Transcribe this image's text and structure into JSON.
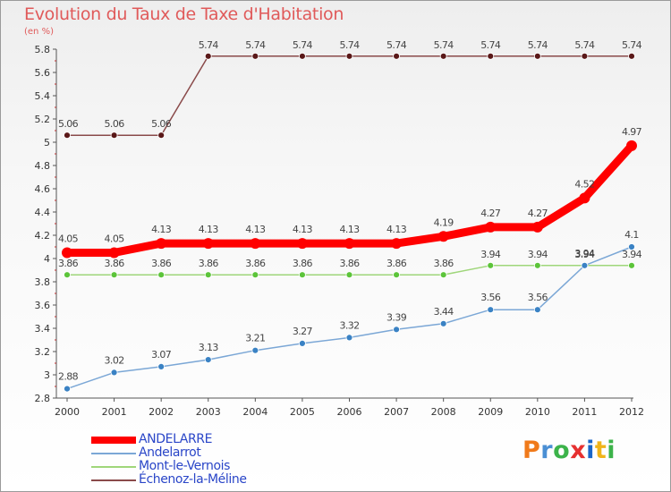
{
  "chart_data": {
    "type": "line",
    "title": "Evolution du Taux de Taxe d'Habitation",
    "subtitle": "(en %)",
    "x": [
      "2000",
      "2001",
      "2002",
      "2003",
      "2004",
      "2005",
      "2006",
      "2007",
      "2008",
      "2009",
      "2010",
      "2011",
      "2012"
    ],
    "y_ticks": [
      "2.8",
      "3",
      "3.2",
      "3.4",
      "3.6",
      "3.8",
      "4",
      "4.2",
      "4.4",
      "4.6",
      "4.8",
      "5",
      "5.2",
      "5.4",
      "5.6",
      "5.8"
    ],
    "ylim": [
      2.8,
      5.8
    ],
    "grid": false,
    "legend_position": "bottom-left",
    "series": [
      {
        "name": "ANDELARRE",
        "color": "#ff0000",
        "point_color": "#ff0000",
        "values": [
          4.05,
          4.05,
          4.13,
          4.13,
          4.13,
          4.13,
          4.13,
          4.13,
          4.19,
          4.27,
          4.27,
          4.52,
          4.97
        ],
        "labels": [
          "4.05",
          "4.05",
          "4.13",
          "4.13",
          "4.13",
          "4.13",
          "4.13",
          "4.13",
          "4.19",
          "4.27",
          "4.27",
          "4.52",
          "4.97"
        ]
      },
      {
        "name": "Andelarrot",
        "color": "#7ba7d6",
        "point_color": "#3a82c4",
        "values": [
          2.88,
          3.02,
          3.07,
          3.13,
          3.21,
          3.27,
          3.32,
          3.39,
          3.44,
          3.56,
          3.56,
          3.94,
          4.1
        ],
        "labels": [
          "2.88",
          "3.02",
          "3.07",
          "3.13",
          "3.21",
          "3.27",
          "3.32",
          "3.39",
          "3.44",
          "3.56",
          "3.56",
          "3.94",
          "4.1"
        ]
      },
      {
        "name": "Mont-le-Vernois",
        "color": "#9fd67a",
        "point_color": "#5cc43a",
        "values": [
          3.86,
          3.86,
          3.86,
          3.86,
          3.86,
          3.86,
          3.86,
          3.86,
          3.86,
          3.94,
          3.94,
          3.94,
          3.94
        ],
        "labels": [
          "3.86",
          "3.86",
          "3.86",
          "3.86",
          "3.86",
          "3.86",
          "3.86",
          "3.86",
          "3.86",
          "3.94",
          "3.94",
          "3.94",
          "3.94"
        ]
      },
      {
        "name": "Échenoz-la-Méline",
        "color": "#8a4a4a",
        "point_color": "#5a1818",
        "values": [
          5.06,
          5.06,
          5.06,
          5.74,
          5.74,
          5.74,
          5.74,
          5.74,
          5.74,
          5.74,
          5.74,
          5.74,
          5.74
        ],
        "labels": [
          "5.06",
          "5.06",
          "5.06",
          "5.74",
          "5.74",
          "5.74",
          "5.74",
          "5.74",
          "5.74",
          "5.74",
          "5.74",
          "5.74",
          "5.74"
        ]
      }
    ]
  },
  "logo": {
    "letters": [
      "P",
      "r",
      "o",
      "x",
      "i",
      "t",
      "i"
    ],
    "colors": [
      "#f07a1a",
      "#4a8fd4",
      "#3cb34a",
      "#e63030",
      "#1a66c8",
      "#f0b41a",
      "#3cb34a"
    ]
  }
}
